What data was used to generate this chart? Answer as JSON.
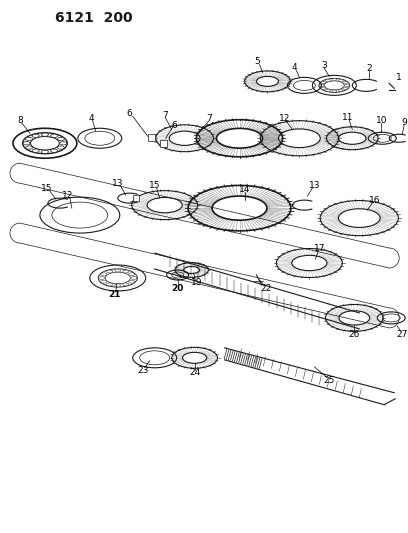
{
  "title": "6121  200",
  "bg_color": "#ffffff",
  "line_color": "#1a1a1a",
  "gray_color": "#888888",
  "dark_gray": "#444444",
  "title_fontsize": 10,
  "fig_width": 4.08,
  "fig_height": 5.33,
  "dpi": 100,
  "label_fontsize": 6.0
}
